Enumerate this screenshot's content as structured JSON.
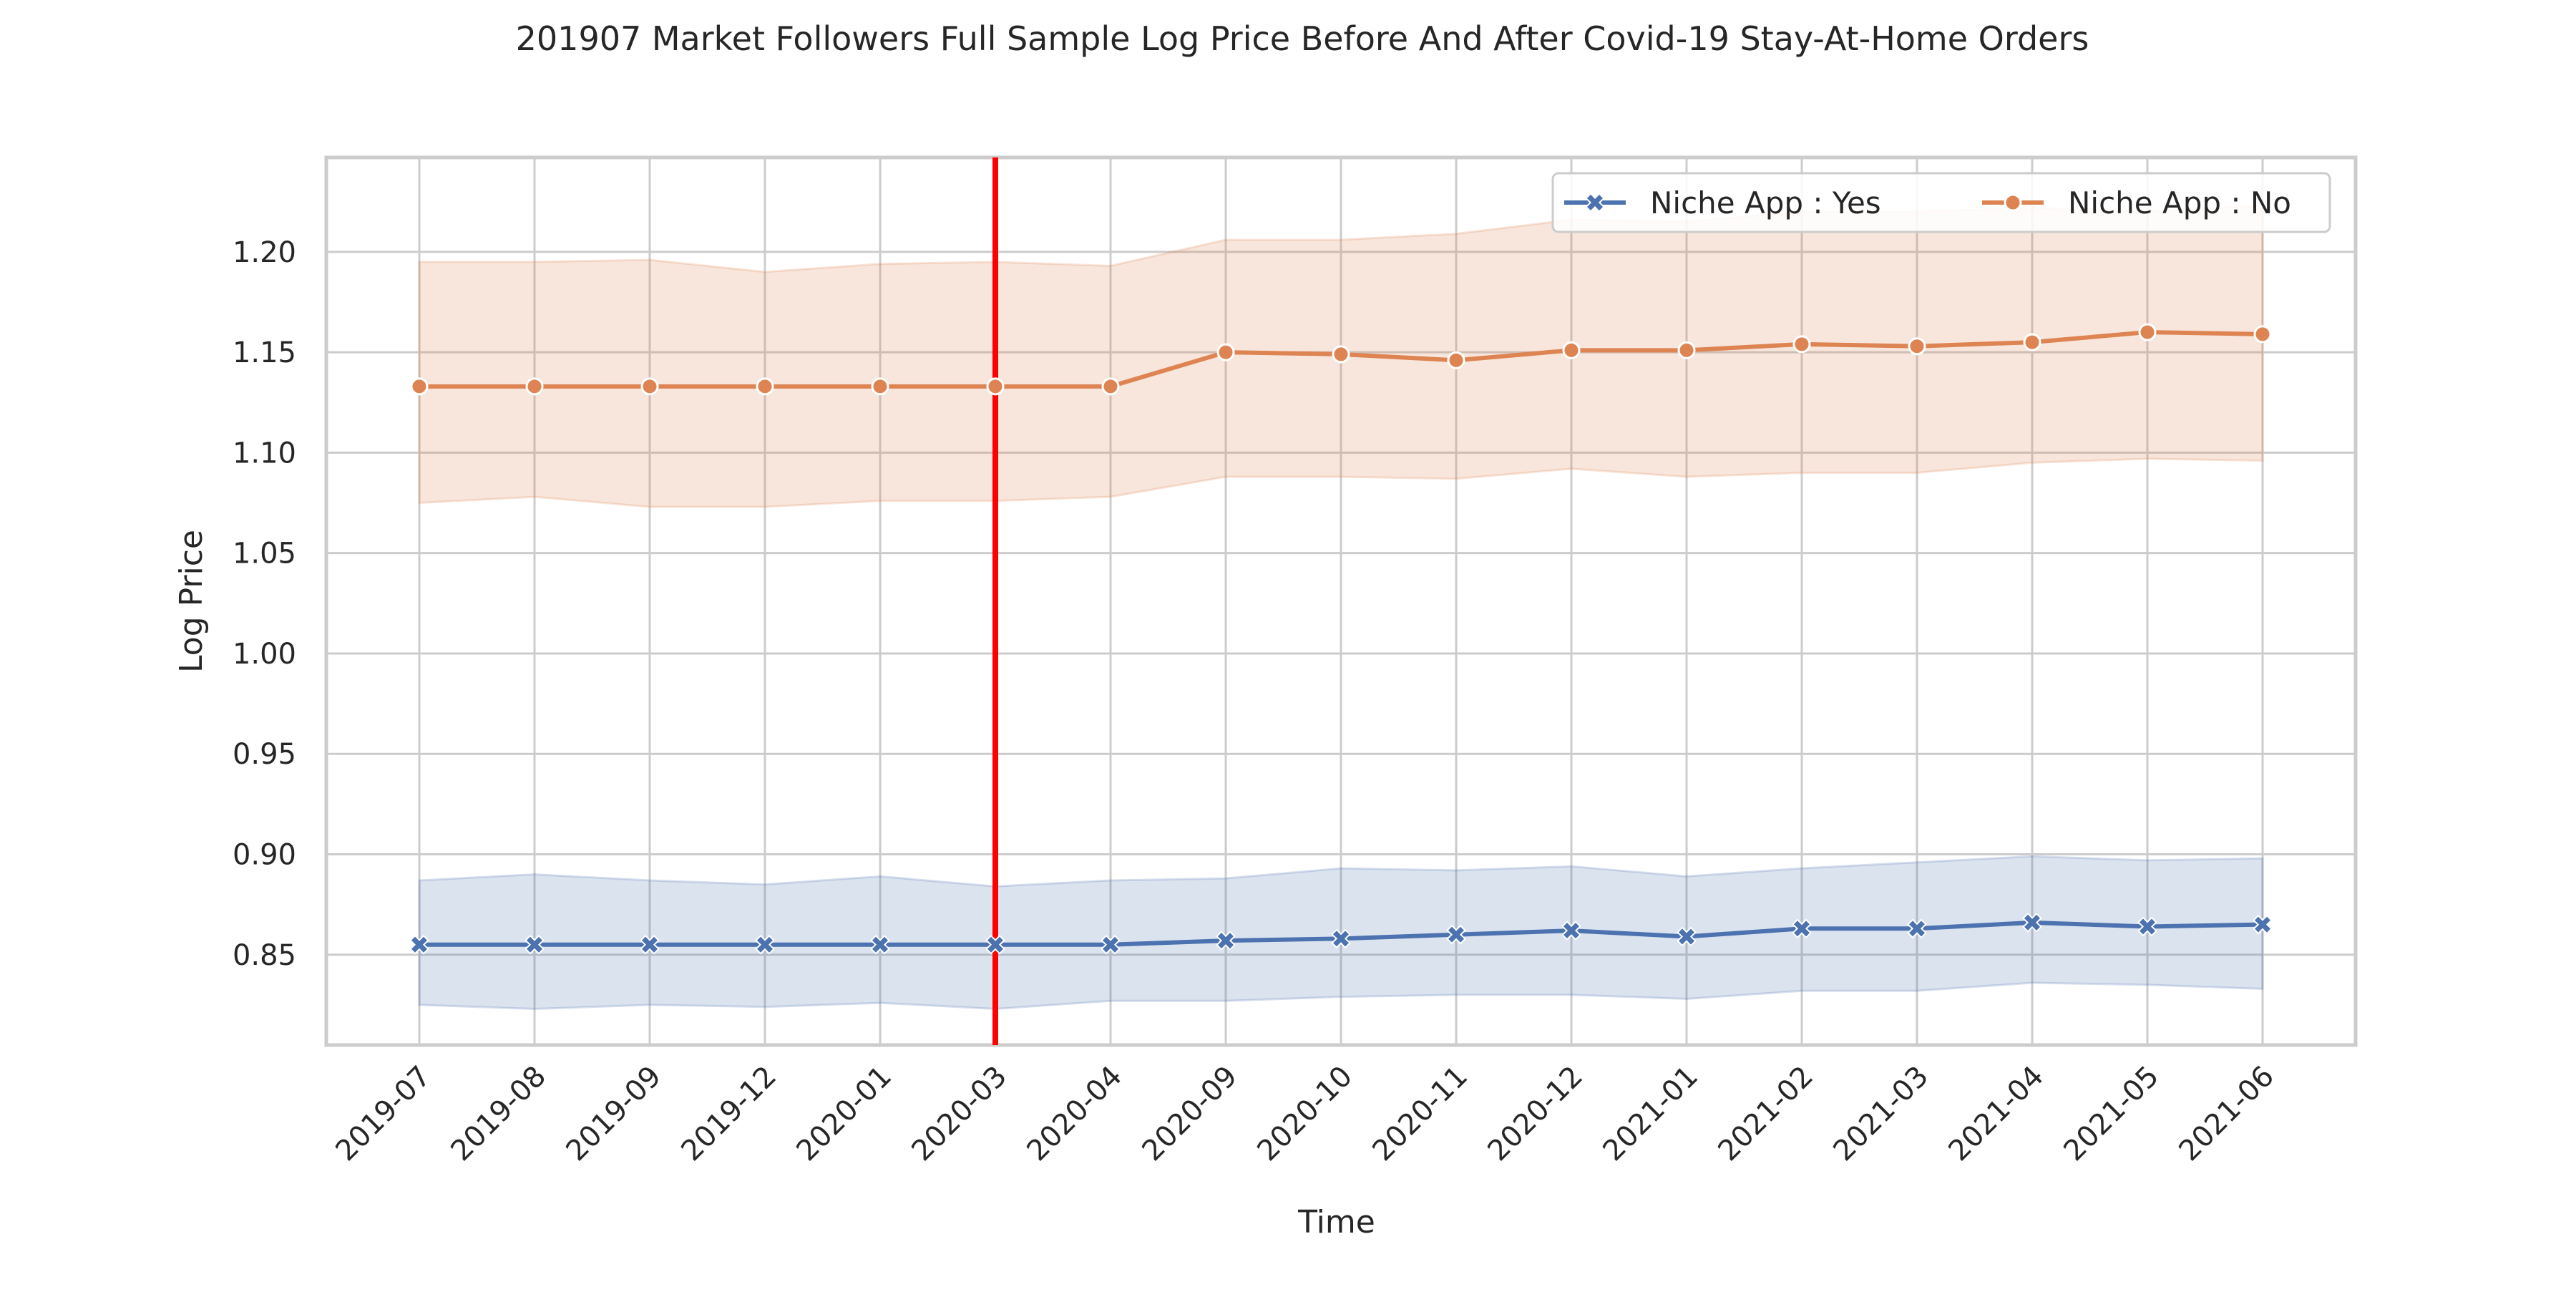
{
  "chart_data": {
    "type": "line",
    "title": "201907 Market Followers Full Sample Log Price Before And After Covid-19 Stay-At-Home Orders",
    "xlabel": "Time",
    "ylabel": "Log Price",
    "categories": [
      "2019-07",
      "2019-08",
      "2019-09",
      "2019-12",
      "2020-01",
      "2020-03",
      "2020-04",
      "2020-09",
      "2020-10",
      "2020-11",
      "2020-12",
      "2021-01",
      "2021-02",
      "2021-03",
      "2021-04",
      "2021-05",
      "2021-06"
    ],
    "ylim": [
      0.805,
      1.247
    ],
    "yticks": [
      "0.85",
      "0.90",
      "0.95",
      "1.00",
      "1.05",
      "1.10",
      "1.15",
      "1.20"
    ],
    "grid": true,
    "legend": "top-right",
    "vline": {
      "x": "2020-03",
      "color": "#ff0000"
    },
    "series": [
      {
        "name": "Niche App : Yes",
        "color": "#4c72b0",
        "marker": "x",
        "values": [
          0.855,
          0.855,
          0.855,
          0.855,
          0.855,
          0.855,
          0.855,
          0.857,
          0.858,
          0.86,
          0.862,
          0.859,
          0.863,
          0.863,
          0.866,
          0.864,
          0.865
        ],
        "upper": [
          0.887,
          0.89,
          0.887,
          0.885,
          0.889,
          0.884,
          0.887,
          0.888,
          0.893,
          0.892,
          0.894,
          0.889,
          0.893,
          0.896,
          0.899,
          0.897,
          0.898
        ],
        "lower": [
          0.825,
          0.823,
          0.825,
          0.824,
          0.826,
          0.823,
          0.827,
          0.827,
          0.829,
          0.83,
          0.83,
          0.828,
          0.832,
          0.832,
          0.836,
          0.835,
          0.833
        ]
      },
      {
        "name": "Niche App : No",
        "color": "#dd8452",
        "marker": "o",
        "values": [
          1.133,
          1.133,
          1.133,
          1.133,
          1.133,
          1.133,
          1.133,
          1.15,
          1.149,
          1.146,
          1.151,
          1.151,
          1.154,
          1.153,
          1.155,
          1.16,
          1.159
        ],
        "upper": [
          1.195,
          1.195,
          1.196,
          1.19,
          1.194,
          1.195,
          1.193,
          1.206,
          1.206,
          1.209,
          1.216,
          1.215,
          1.22,
          1.22,
          1.222,
          1.22,
          1.223
        ],
        "lower": [
          1.075,
          1.078,
          1.073,
          1.073,
          1.076,
          1.076,
          1.078,
          1.088,
          1.088,
          1.087,
          1.092,
          1.088,
          1.09,
          1.09,
          1.095,
          1.097,
          1.096
        ]
      }
    ]
  }
}
